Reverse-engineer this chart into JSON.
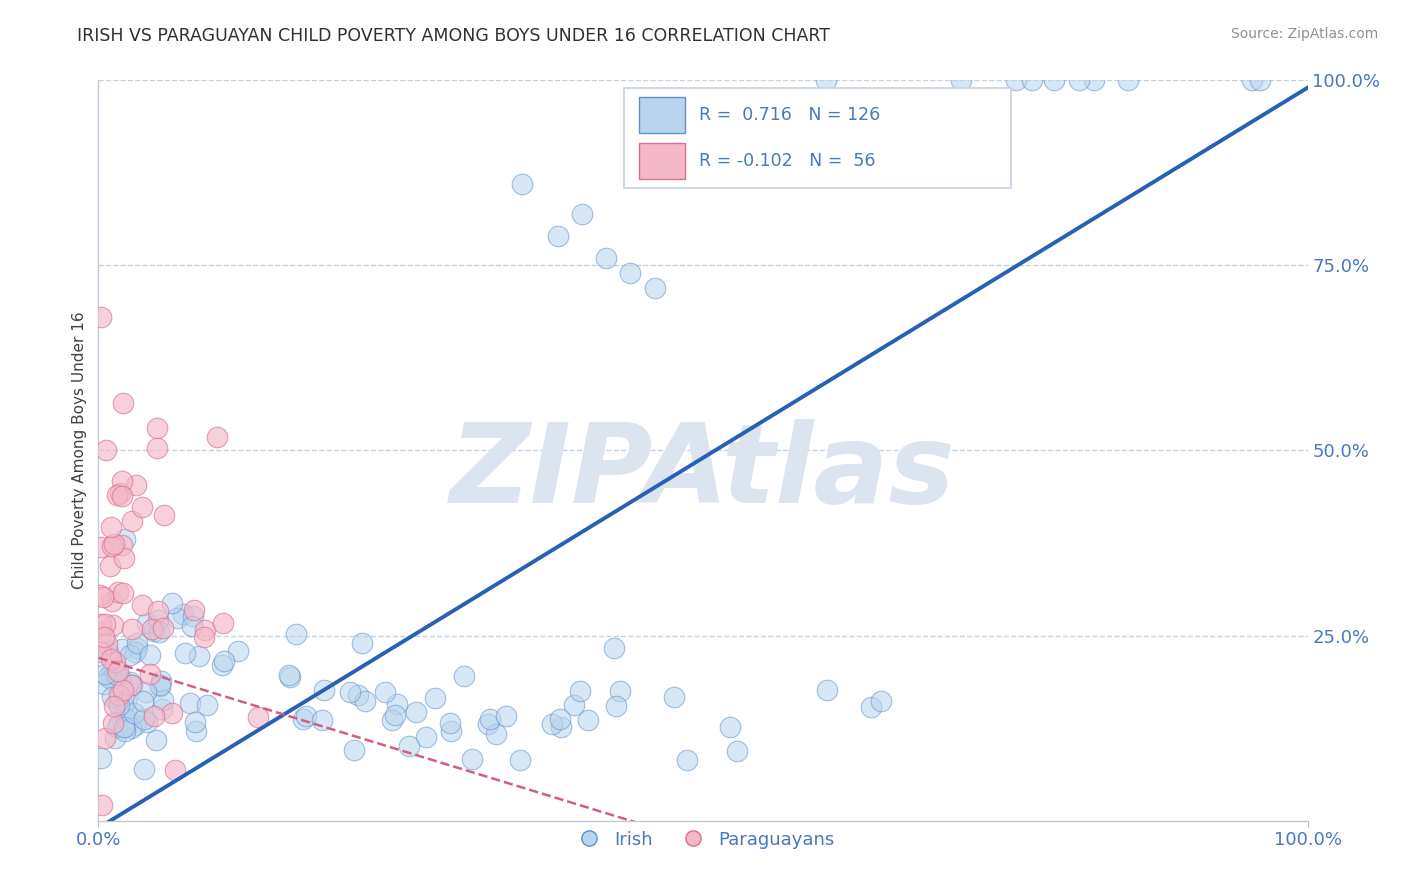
{
  "title": "IRISH VS PARAGUAYAN CHILD POVERTY AMONG BOYS UNDER 16 CORRELATION CHART",
  "source": "Source: ZipAtlas.com",
  "ylabel": "Child Poverty Among Boys Under 16",
  "watermark": "ZIPAtlas",
  "xlim": [
    0,
    1
  ],
  "ylim": [
    0,
    1
  ],
  "xtick_labels": [
    "0.0%",
    "100.0%"
  ],
  "ytick_labels": [
    "25.0%",
    "50.0%",
    "75.0%",
    "100.0%"
  ],
  "ytick_positions": [
    0.25,
    0.5,
    0.75,
    1.0
  ],
  "irish_R": 0.716,
  "irish_N": 126,
  "paraguayan_R": -0.102,
  "paraguayan_N": 56,
  "irish_color": "#b8d4ee",
  "irish_edge_color": "#6090c8",
  "irish_line_color": "#2860b8",
  "paraguayan_color": "#f4b8c8",
  "paraguayan_edge_color": "#d87090",
  "paraguayan_line_color": "#d06080",
  "legend_irish_label": "Irish",
  "legend_paraguayan_label": "Paraguayans",
  "background_color": "#ffffff",
  "grid_color": "#c0cce0",
  "title_color": "#303030",
  "axis_label_color": "#404040",
  "tick_label_color_blue": "#4878c0",
  "stats_color": "#4878c0",
  "watermark_color": "#dce4f0",
  "source_color": "#909090"
}
